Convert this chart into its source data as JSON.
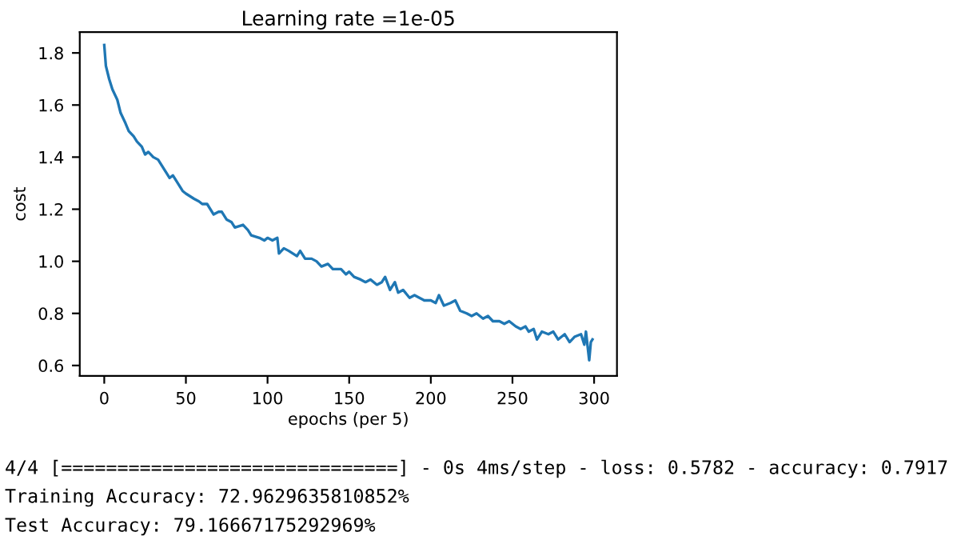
{
  "chart_data": {
    "type": "line",
    "title": "Learning rate =1e-05",
    "xlabel": "epochs (per 5)",
    "ylabel": "cost",
    "x": [
      0,
      1,
      3,
      5,
      8,
      10,
      13,
      15,
      18,
      20,
      23,
      25,
      27,
      30,
      33,
      36,
      40,
      42,
      45,
      48,
      50,
      55,
      58,
      60,
      63,
      67,
      70,
      72,
      75,
      78,
      80,
      85,
      88,
      90,
      95,
      98,
      100,
      103,
      106,
      107,
      110,
      113,
      118,
      120,
      123,
      127,
      130,
      133,
      137,
      140,
      145,
      148,
      150,
      153,
      157,
      160,
      163,
      167,
      170,
      172,
      175,
      178,
      180,
      183,
      187,
      190,
      193,
      196,
      200,
      203,
      205,
      208,
      212,
      215,
      218,
      222,
      225,
      228,
      232,
      235,
      238,
      242,
      245,
      248,
      252,
      255,
      258,
      260,
      263,
      265,
      268,
      272,
      275,
      278,
      282,
      285,
      288,
      292,
      294,
      295,
      297,
      298,
      299
    ],
    "series": [
      {
        "color": "#1f77b4",
        "values": [
          1.83,
          1.75,
          1.7,
          1.66,
          1.62,
          1.57,
          1.53,
          1.5,
          1.48,
          1.46,
          1.44,
          1.41,
          1.42,
          1.4,
          1.39,
          1.36,
          1.32,
          1.33,
          1.3,
          1.27,
          1.26,
          1.24,
          1.23,
          1.22,
          1.22,
          1.18,
          1.19,
          1.19,
          1.16,
          1.15,
          1.13,
          1.14,
          1.12,
          1.1,
          1.09,
          1.08,
          1.09,
          1.08,
          1.09,
          1.03,
          1.05,
          1.04,
          1.02,
          1.04,
          1.01,
          1.01,
          1.0,
          0.98,
          0.99,
          0.97,
          0.97,
          0.95,
          0.96,
          0.94,
          0.93,
          0.92,
          0.93,
          0.91,
          0.92,
          0.94,
          0.89,
          0.92,
          0.88,
          0.89,
          0.86,
          0.87,
          0.86,
          0.85,
          0.85,
          0.84,
          0.87,
          0.83,
          0.84,
          0.85,
          0.81,
          0.8,
          0.79,
          0.8,
          0.78,
          0.79,
          0.77,
          0.77,
          0.76,
          0.77,
          0.75,
          0.74,
          0.75,
          0.73,
          0.74,
          0.7,
          0.73,
          0.72,
          0.73,
          0.7,
          0.72,
          0.69,
          0.71,
          0.72,
          0.68,
          0.73,
          0.62,
          0.69,
          0.7
        ]
      }
    ],
    "xlim": [
      -15,
      314
    ],
    "xticks": [
      0,
      50,
      100,
      150,
      200,
      250,
      300
    ],
    "ylim": [
      0.56,
      1.88
    ],
    "yticks": [
      {
        "value": 0.6,
        "label": "0.6"
      },
      {
        "value": 0.8,
        "label": "0.8"
      },
      {
        "value": 1.0,
        "label": "1.0"
      },
      {
        "value": 1.2,
        "label": "1.2"
      },
      {
        "value": 1.4,
        "label": "1.4"
      },
      {
        "value": 1.6,
        "label": "1.6"
      },
      {
        "value": 1.8,
        "label": "1.8"
      }
    ],
    "grid": false,
    "legend": false,
    "annotations": [
      "4/4 [==============================] - 0s 4ms/step - loss: 0.5782 - accuracy: 0.7917",
      "Training Accuracy: 72.9629635810852%",
      "Test Accuracy: 79.16667175292969%"
    ]
  }
}
